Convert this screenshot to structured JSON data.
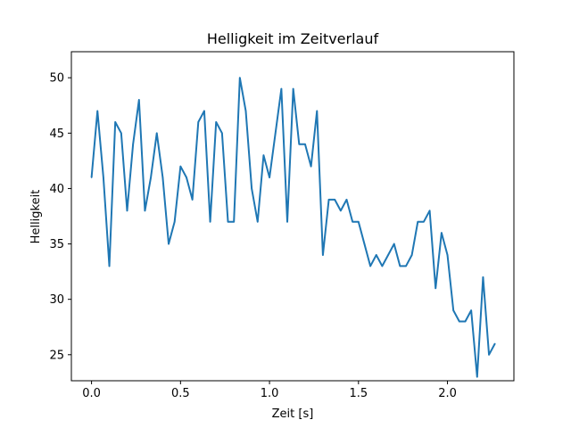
{
  "chart_data": {
    "type": "line",
    "title": "Helligkeit im Zeitverlauf",
    "xlabel": "Zeit [s]",
    "ylabel": "Helligkeit",
    "xlim": [
      -0.1133,
      2.3733
    ],
    "ylim": [
      22.65,
      52.35
    ],
    "xticks": [
      0.0,
      0.5,
      1.0,
      1.5,
      2.0
    ],
    "xtick_labels": [
      "0.0",
      "0.5",
      "1.0",
      "1.5",
      "2.0"
    ],
    "yticks": [
      25,
      30,
      35,
      40,
      45,
      50
    ],
    "ytick_labels": [
      "25",
      "30",
      "35",
      "40",
      "45",
      "50"
    ],
    "grid": false,
    "line_color": "#1f77b4",
    "series": [
      {
        "x": [
          0.0,
          0.0333,
          0.0667,
          0.1,
          0.1333,
          0.1667,
          0.2,
          0.2333,
          0.2667,
          0.3,
          0.3333,
          0.3667,
          0.4,
          0.4333,
          0.4667,
          0.5,
          0.5333,
          0.5667,
          0.6,
          0.6333,
          0.6667,
          0.7,
          0.7333,
          0.7667,
          0.8,
          0.8333,
          0.8667,
          0.9,
          0.9333,
          0.9667,
          1.0,
          1.0333,
          1.0667,
          1.1,
          1.1333,
          1.1667,
          1.2,
          1.2333,
          1.2667,
          1.3,
          1.3333,
          1.3667,
          1.4,
          1.4333,
          1.4667,
          1.5,
          1.5333,
          1.5667,
          1.6,
          1.6333,
          1.6667,
          1.7,
          1.7333,
          1.7667,
          1.8,
          1.8333,
          1.8667,
          1.9,
          1.9333,
          1.9667,
          2.0,
          2.0333,
          2.0667,
          2.1,
          2.1333,
          2.1667,
          2.2,
          2.2333,
          2.2667
        ],
        "y": [
          41,
          47,
          41,
          33,
          46,
          45,
          38,
          44,
          48,
          38,
          41,
          45,
          41,
          35,
          37,
          42,
          41,
          39,
          46,
          47,
          37,
          46,
          45,
          37,
          37,
          50,
          47,
          40,
          37,
          43,
          41,
          45,
          49,
          37,
          49,
          44,
          44,
          42,
          47,
          34,
          39,
          39,
          38,
          39,
          37,
          37,
          35,
          33,
          34,
          33,
          34,
          35,
          33,
          33,
          34,
          37,
          37,
          38,
          31,
          36,
          34,
          29,
          28,
          28,
          29,
          23,
          32,
          25,
          26
        ]
      }
    ]
  }
}
